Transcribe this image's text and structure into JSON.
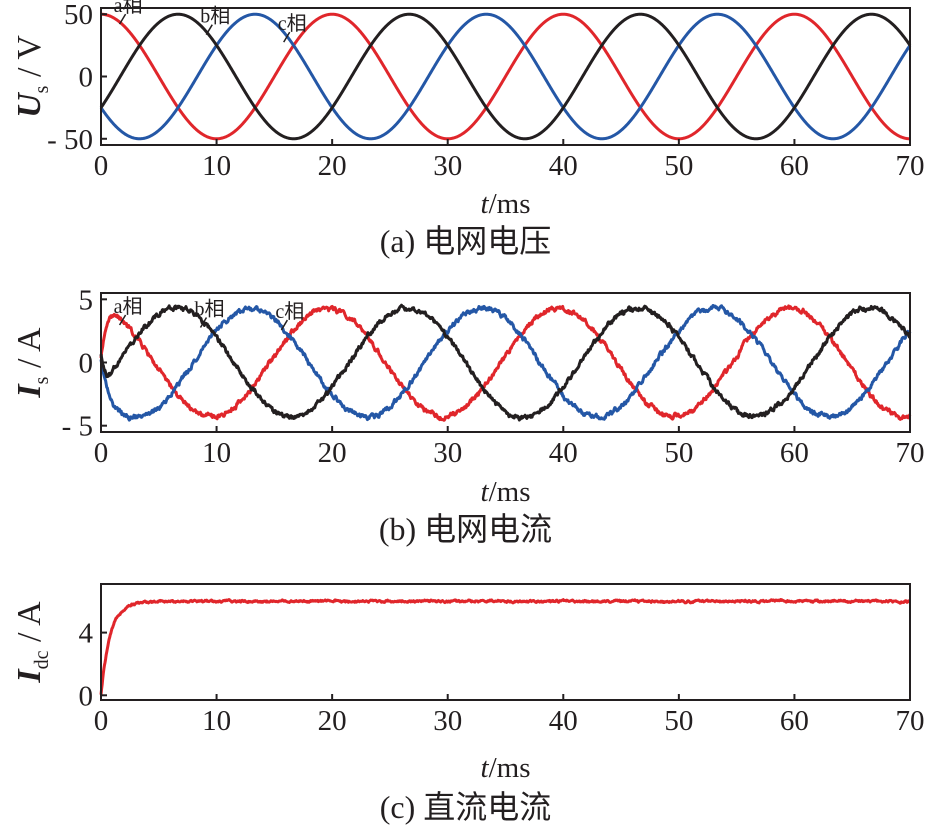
{
  "colors": {
    "a": "#e0262b",
    "b": "#2457a6",
    "c": "#231f20",
    "frame": "#231f20"
  },
  "chart_data": [
    {
      "type": "line",
      "caption": "(a) 电网电压",
      "ylabel_main": "U",
      "ylabel_sub": "s",
      "ylabel_unit": " / V",
      "xlabel_var": "t",
      "xlabel_unit": "/ms",
      "xlim": [
        0,
        70
      ],
      "ylim": [
        -55,
        55
      ],
      "xticks": [
        0,
        10,
        20,
        30,
        40,
        50,
        60,
        70
      ],
      "yticks": [
        {
          "value": 50,
          "label": "50"
        },
        {
          "value": 0,
          "label": "0"
        },
        {
          "value": -50,
          "label": "- 50"
        }
      ],
      "grid": false,
      "legend": "none",
      "annotations": [
        {
          "text": "a相",
          "x": 2.3,
          "y": 48.5
        },
        {
          "text": "b相",
          "x": 9.8,
          "y": 40
        },
        {
          "text": "c相",
          "x": 16.5,
          "y": 34
        }
      ],
      "series": [
        {
          "color": "a",
          "func": "sine",
          "amplitude": 50,
          "period_ms": 20,
          "peak_ms": 0,
          "noise": 0
        },
        {
          "color": "b",
          "func": "sine",
          "amplitude": 50,
          "period_ms": 20,
          "peak_ms": 13.33,
          "noise": 0
        },
        {
          "color": "c",
          "func": "sine",
          "amplitude": 50,
          "period_ms": 20,
          "peak_ms": 6.67,
          "noise": 0
        }
      ]
    },
    {
      "type": "line",
      "caption": "(b) 电网电流",
      "ylabel_main": "I",
      "ylabel_sub": "s",
      "ylabel_unit": " / A",
      "xlabel_var": "t",
      "xlabel_unit": "/ms",
      "xlim": [
        0,
        70
      ],
      "ylim": [
        -5.5,
        5.5
      ],
      "xticks": [
        0,
        10,
        20,
        30,
        40,
        50,
        60,
        70
      ],
      "yticks": [
        {
          "value": 5,
          "label": "5"
        },
        {
          "value": 0,
          "label": "0"
        },
        {
          "value": -5,
          "label": "- 5"
        }
      ],
      "grid": false,
      "legend": "none",
      "annotations": [
        {
          "text": "a相",
          "x": 2.3,
          "y": 3.6
        },
        {
          "text": "b相",
          "x": 9.3,
          "y": 3.4
        },
        {
          "text": "c相",
          "x": 16.3,
          "y": 3.2
        }
      ],
      "series": [
        {
          "color": "a",
          "func": "sine",
          "amplitude": 4.3,
          "period_ms": 20,
          "peak_ms": 19.6,
          "noise": 0.14,
          "start_value": 0.4,
          "settle_ms": 1.6,
          "settle_value": 3.6
        },
        {
          "color": "b",
          "func": "sine",
          "amplitude": 4.3,
          "period_ms": 20,
          "peak_ms": 13.0,
          "noise": 0.14,
          "start_value": 0.2,
          "settle_ms": 2.2,
          "settle_value": -4.2
        },
        {
          "color": "c",
          "func": "sine",
          "amplitude": 4.3,
          "period_ms": 20,
          "peak_ms": 6.5,
          "noise": 0.14,
          "start_value": 0.6,
          "settle_ms": 1.0,
          "settle_value": -0.6
        }
      ]
    },
    {
      "type": "line",
      "caption": "(c) 直流电流",
      "ylabel_main": "I",
      "ylabel_sub": "dc",
      "ylabel_unit": " / A",
      "xlabel_var": "t",
      "xlabel_unit": "/ms",
      "xlim": [
        0,
        70
      ],
      "ylim": [
        -0.3,
        7.1
      ],
      "xticks": [
        0,
        10,
        20,
        30,
        40,
        50,
        60,
        70
      ],
      "yticks": [
        {
          "value": 4,
          "label": "4"
        },
        {
          "value": 0,
          "label": "0"
        }
      ],
      "grid": false,
      "legend": "none",
      "annotations": [],
      "series": [
        {
          "color": "a",
          "func": "step",
          "final": 6.0,
          "rise_ms": 0.8,
          "noise": 0.05
        }
      ]
    }
  ]
}
